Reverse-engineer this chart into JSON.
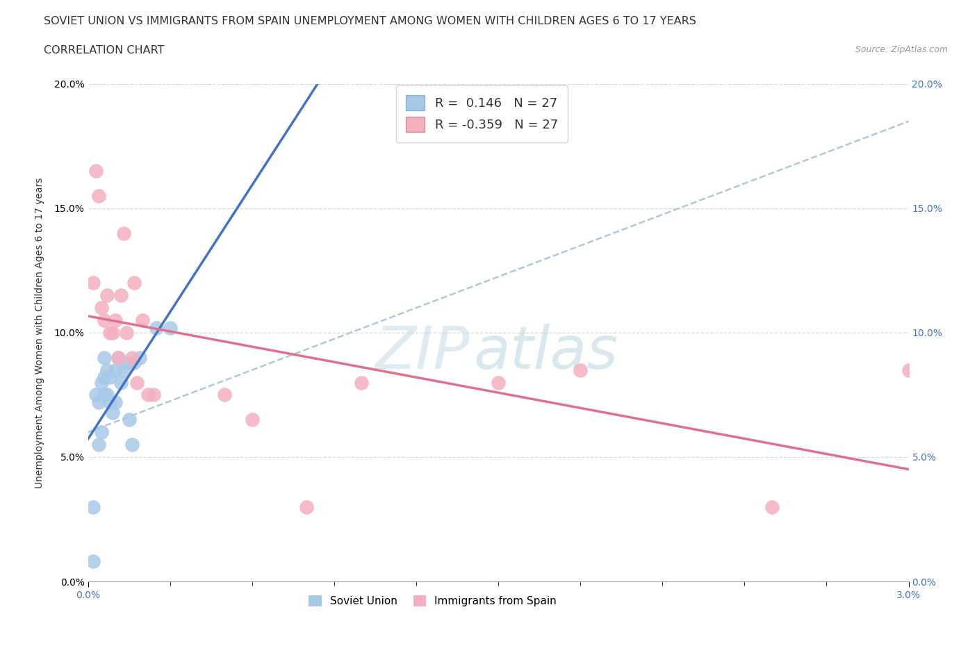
{
  "title_line1": "SOVIET UNION VS IMMIGRANTS FROM SPAIN UNEMPLOYMENT AMONG WOMEN WITH CHILDREN AGES 6 TO 17 YEARS",
  "title_line2": "CORRELATION CHART",
  "source": "Source: ZipAtlas.com",
  "ylabel": "Unemployment Among Women with Children Ages 6 to 17 years",
  "xlabel_blue": "Soviet Union",
  "xlabel_pink": "Immigrants from Spain",
  "r_blue": 0.146,
  "n_blue": 27,
  "r_pink": -0.359,
  "n_pink": 27,
  "blue_color": "#a8c8e8",
  "blue_line_color": "#4472c4",
  "pink_color": "#f4b0c0",
  "pink_line_color": "#e07090",
  "xmin": 0.0,
  "xmax": 0.03,
  "ymin": 0.0,
  "ymax": 0.2,
  "blue_x": [
    0.0002,
    0.0002,
    0.0003,
    0.0004,
    0.0004,
    0.0005,
    0.0005,
    0.0006,
    0.0006,
    0.0006,
    0.0007,
    0.0007,
    0.0008,
    0.0008,
    0.0009,
    0.001,
    0.001,
    0.0011,
    0.0012,
    0.0013,
    0.0014,
    0.0015,
    0.0016,
    0.0017,
    0.0019,
    0.0025,
    0.003
  ],
  "blue_y": [
    0.008,
    0.03,
    0.075,
    0.055,
    0.072,
    0.06,
    0.08,
    0.075,
    0.082,
    0.09,
    0.075,
    0.085,
    0.072,
    0.082,
    0.068,
    0.072,
    0.085,
    0.09,
    0.08,
    0.085,
    0.088,
    0.065,
    0.055,
    0.088,
    0.09,
    0.102,
    0.102
  ],
  "pink_x": [
    0.0002,
    0.0003,
    0.0004,
    0.0005,
    0.0006,
    0.0007,
    0.0008,
    0.0009,
    0.001,
    0.0011,
    0.0012,
    0.0013,
    0.0014,
    0.0016,
    0.0017,
    0.0018,
    0.002,
    0.0022,
    0.0024,
    0.005,
    0.006,
    0.008,
    0.01,
    0.015,
    0.018,
    0.025,
    0.03
  ],
  "pink_y": [
    0.12,
    0.165,
    0.155,
    0.11,
    0.105,
    0.115,
    0.1,
    0.1,
    0.105,
    0.09,
    0.115,
    0.14,
    0.1,
    0.09,
    0.12,
    0.08,
    0.105,
    0.075,
    0.075,
    0.075,
    0.065,
    0.03,
    0.08,
    0.08,
    0.085,
    0.03,
    0.085
  ],
  "watermark_top": "ZIP",
  "watermark_bot": "atlas",
  "bg_color": "#ffffff",
  "grid_color": "#d0d0d0",
  "title_fontsize": 11.5,
  "subtitle_fontsize": 11.5,
  "axis_label_fontsize": 10,
  "tick_fontsize": 10,
  "legend_fontsize": 13
}
